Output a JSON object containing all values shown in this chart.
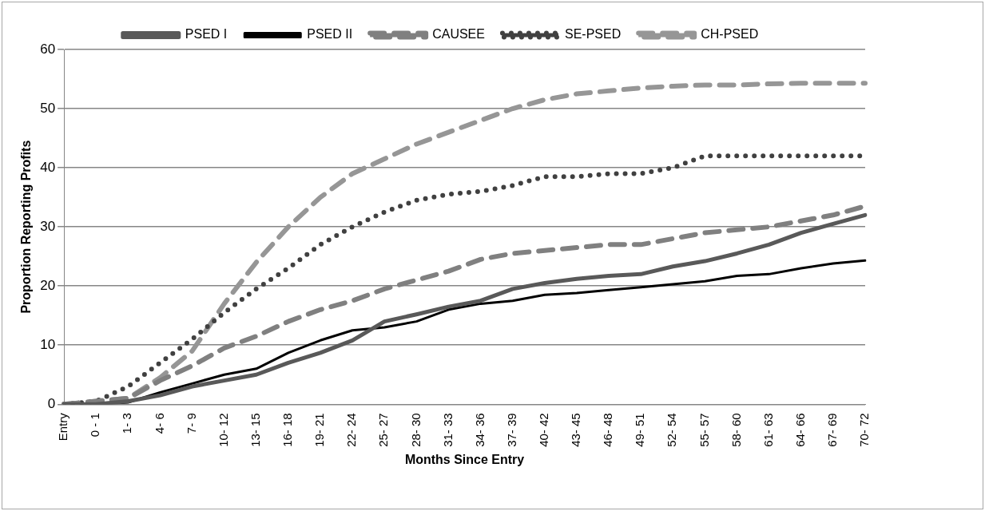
{
  "chart_data": {
    "type": "line",
    "xlabel": "Months Since Entry",
    "ylabel": "Proportion Reporting Profits",
    "categories": [
      "Entry",
      "0 - 1",
      "1- 3",
      "4- 6",
      "7- 9",
      "10- 12",
      "13- 15",
      "16- 18",
      "19- 21",
      "22- 24",
      "25- 27",
      "28- 30",
      "31- 33",
      "34- 36",
      "37- 39",
      "40- 42",
      "43- 45",
      "46- 48",
      "49- 51",
      "52- 54",
      "55- 57",
      "58- 60",
      "61- 63",
      "64- 66",
      "67- 69",
      "70- 72"
    ],
    "series": [
      {
        "name": "PSED I",
        "color": "#595959",
        "line_style": "solid",
        "values": [
          0,
          0,
          0.5,
          1.5,
          3,
          4,
          5,
          7,
          8.7,
          10.8,
          14,
          15.2,
          16.5,
          17.5,
          19.5,
          20.5,
          21.2,
          21.7,
          22,
          23.3,
          24.2,
          25.5,
          27,
          29,
          30.5,
          32
        ]
      },
      {
        "name": "PSED II",
        "color": "#000000",
        "line_style": "solid",
        "values": [
          0,
          0,
          0.3,
          2,
          3.5,
          5,
          6,
          8.7,
          10.8,
          12.5,
          13,
          14,
          16,
          17,
          17.5,
          18.5,
          18.8,
          19.3,
          19.8,
          20.3,
          20.8,
          21.7,
          22,
          23,
          23.8,
          24.3
        ]
      },
      {
        "name": "CAUSEE",
        "color": "#808080",
        "line_style": "dashed",
        "values": [
          0,
          0.5,
          1,
          4,
          6.5,
          9.5,
          11.5,
          14,
          16,
          17.5,
          19.5,
          21,
          22.5,
          24.5,
          25.5,
          26,
          26.5,
          27,
          27,
          28,
          29,
          29.5,
          30,
          31,
          32,
          33.5
        ]
      },
      {
        "name": "SE-PSED",
        "color": "#404040",
        "line_style": "dotted",
        "values": [
          0,
          0.5,
          3,
          7,
          11,
          15.5,
          19.5,
          23,
          27,
          30,
          32.5,
          34.5,
          35.5,
          36,
          37,
          38.5,
          38.5,
          39,
          39,
          40,
          42,
          42,
          42,
          42,
          42,
          42
        ]
      },
      {
        "name": "CH-PSED",
        "color": "#969696",
        "line_style": "dashed",
        "values": [
          0,
          0.5,
          1,
          4.5,
          9,
          17,
          24,
          30,
          35,
          39,
          41.5,
          44,
          46,
          48,
          50,
          51.5,
          52.5,
          53,
          53.5,
          53.8,
          54,
          54,
          54.2,
          54.3,
          54.3,
          54.3
        ]
      }
    ],
    "ylim": [
      0,
      60
    ],
    "yticks": [
      0,
      10,
      20,
      30,
      40,
      50,
      60
    ],
    "grid": "y",
    "legend": "top",
    "marker": "none"
  }
}
